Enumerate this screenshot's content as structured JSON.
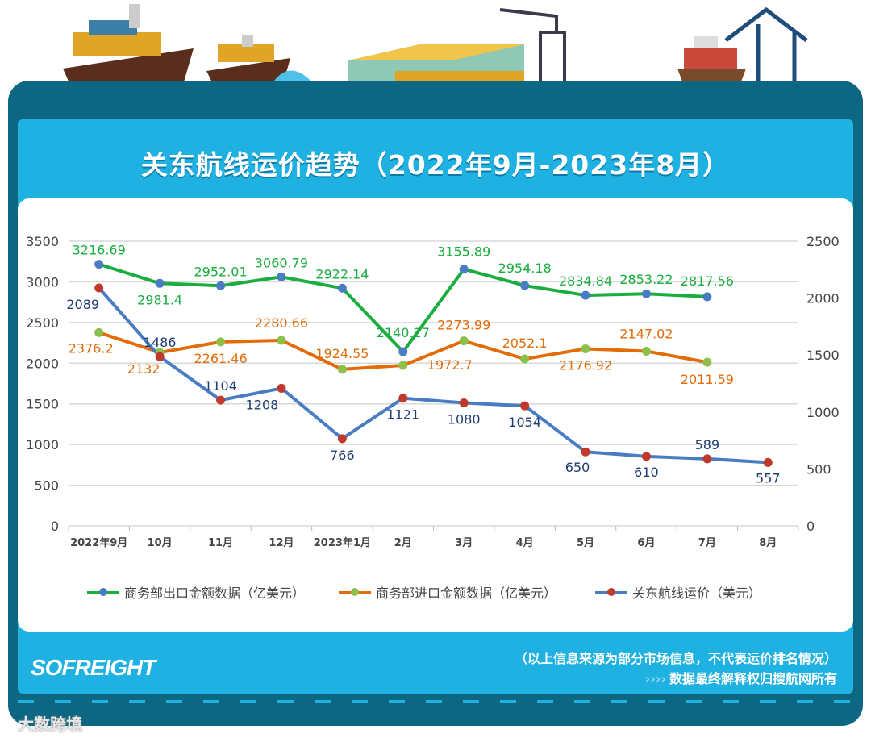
{
  "title": "关东航线运价趋势（2022年9月-2023年8月）",
  "chart_data": {
    "type": "line",
    "categories": [
      "2022年9月",
      "10月",
      "11月",
      "12月",
      "2023年1月",
      "2月",
      "3月",
      "4月",
      "5月",
      "6月",
      "7月",
      "8月"
    ],
    "left_axis": {
      "ylim": [
        0,
        3500
      ],
      "ticks": [
        "0",
        "500",
        "1000",
        "1500",
        "2000",
        "2500",
        "3000",
        "3500"
      ]
    },
    "right_axis": {
      "ylim": [
        0,
        2500
      ],
      "ticks": [
        "0",
        "500",
        "1000",
        "1500",
        "2000",
        "2500"
      ]
    },
    "grid": true,
    "legend_position": "bottom",
    "series": [
      {
        "name": "商务部出口金额数据（亿美元）",
        "axis": "left",
        "line_color": "#1aad3f",
        "marker_color": "#4a7cc4",
        "values": [
          3216.69,
          2981.4,
          2952.01,
          3060.79,
          2922.14,
          2140.27,
          3155.89,
          2954.18,
          2834.84,
          2853.22,
          2817.56,
          null
        ],
        "labels": [
          "3216.69",
          "2981.4",
          "2952.01",
          "3060.79",
          "2922.14",
          "2140.27",
          "3155.89",
          "2954.18",
          "2834.84",
          "2853.22",
          "2817.56",
          ""
        ]
      },
      {
        "name": "商务部进口金额数据（亿美元）",
        "axis": "left",
        "line_color": "#e36c0a",
        "marker_color": "#8cc04a",
        "values": [
          2376.2,
          2132,
          2261.46,
          2280.66,
          1924.55,
          1972.7,
          2273.99,
          2052.1,
          2176.92,
          2147.02,
          2011.59,
          null
        ],
        "labels": [
          "2376.2",
          "2132",
          "2261.46",
          "2280.66",
          "1924.55",
          "1972.7",
          "2273.99",
          "2052.1",
          "2176.92",
          "2147.02",
          "2011.59",
          ""
        ]
      },
      {
        "name": "关东航线运价（美元）",
        "axis": "right",
        "line_color": "#4a7cc4",
        "marker_color": "#c0392b",
        "values": [
          2089,
          1486,
          1104,
          1208,
          766,
          1121,
          1080,
          1054,
          650,
          610,
          589,
          557
        ],
        "labels": [
          "2089",
          "1486",
          "1104",
          "1208",
          "766",
          "1121",
          "1080",
          "1054",
          "650",
          "610",
          "589",
          "557"
        ]
      }
    ]
  },
  "footer": {
    "logo": "SOFREIGHT",
    "note": "（以上信息来源为部分市场信息，不代表运价排名情况）",
    "arrows": "››››",
    "copyright": "数据最终解释权归搜航网所有"
  },
  "watermark": "大数跨境"
}
